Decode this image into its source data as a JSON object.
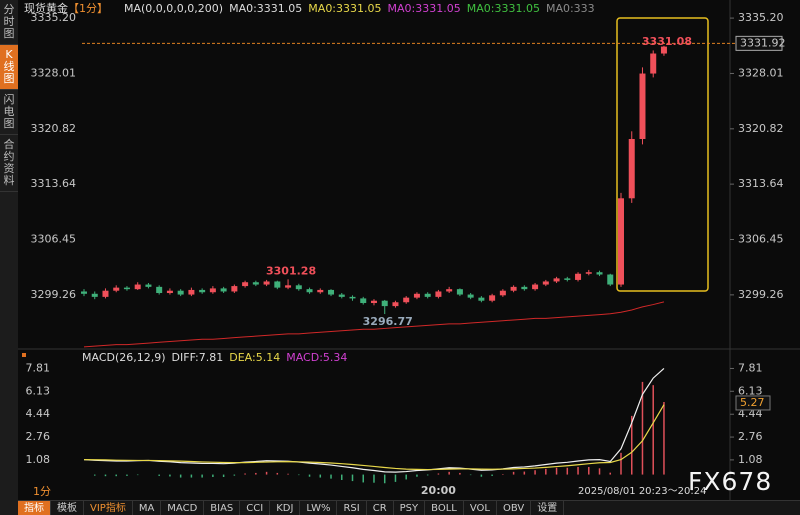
{
  "sidebar_tabs": [
    "分时图",
    "K线图",
    "闪电图",
    "合约资料"
  ],
  "toolbar": {
    "period": "1分",
    "items": [
      "指标",
      "模板",
      "VIP指标",
      "MA",
      "MACD",
      "BIAS",
      "CCI",
      "KDJ",
      "LW%",
      "RSI",
      "CR",
      "PSY",
      "BOLL",
      "VOL",
      "OBV",
      "设置"
    ]
  },
  "timestamp": "2025/08/01  20:23～20:24",
  "watermark": "FX678",
  "chart_data": [
    {
      "type": "candlestick",
      "title": "现货黄金",
      "period": "【1分】",
      "ma_label": "MA(0,0,0,0,0,200)",
      "ma_texts": [
        {
          "text": "MA0:3331.05",
          "color": "#dddddd"
        },
        {
          "text": "MA0:3331.05",
          "color": "#e8d84a"
        },
        {
          "text": "MA0:3331.05",
          "color": "#d040d0"
        },
        {
          "text": "MA0:3331.05",
          "color": "#40c040"
        },
        {
          "text": "MA0:333",
          "color": "#8a8a8a"
        }
      ],
      "categories": [
        null,
        null,
        null,
        null,
        null,
        null,
        null,
        null,
        null,
        null,
        null,
        null,
        null,
        null,
        null,
        null,
        null,
        null,
        null,
        null,
        null,
        null,
        null,
        null,
        null,
        null,
        null,
        null,
        null,
        null,
        null,
        null,
        null,
        "20:00",
        null,
        null,
        null,
        null,
        null,
        null,
        null,
        null,
        null,
        null,
        null,
        null,
        null,
        null,
        null,
        null,
        null,
        null,
        null,
        null,
        null
      ],
      "open": [
        3299.7,
        3299.4,
        3299.0,
        3299.8,
        3300.2,
        3300.0,
        3300.6,
        3300.3,
        3299.5,
        3299.8,
        3299.3,
        3299.9,
        3299.6,
        3300.1,
        3299.7,
        3300.4,
        3300.9,
        3300.6,
        3301.0,
        3300.2,
        3300.5,
        3300.0,
        3299.6,
        3299.9,
        3299.3,
        3299.0,
        3298.8,
        3298.2,
        3298.5,
        3297.8,
        3298.3,
        3298.9,
        3299.4,
        3299.0,
        3299.7,
        3300.0,
        3299.3,
        3298.9,
        3298.5,
        3299.2,
        3299.8,
        3300.3,
        3300.0,
        3300.6,
        3301.0,
        3301.4,
        3301.2,
        3302.0,
        3302.2,
        3301.9,
        3300.6,
        3311.8,
        3319.5,
        3328.0,
        3330.6
      ],
      "high": [
        3300.0,
        3299.7,
        3300.1,
        3300.5,
        3300.4,
        3300.9,
        3300.8,
        3300.5,
        3300.1,
        3300.0,
        3300.2,
        3300.1,
        3300.4,
        3300.3,
        3300.6,
        3301.1,
        3301.1,
        3301.2,
        3301.1,
        3301.28,
        3300.7,
        3300.2,
        3300.1,
        3300.0,
        3299.5,
        3299.2,
        3299.0,
        3298.7,
        3298.6,
        3298.5,
        3299.1,
        3299.6,
        3299.6,
        3299.9,
        3300.3,
        3300.1,
        3299.5,
        3299.1,
        3299.4,
        3300.0,
        3300.5,
        3300.5,
        3300.8,
        3301.2,
        3301.6,
        3301.6,
        3302.2,
        3302.5,
        3302.4,
        3302.0,
        3312.5,
        3320.5,
        3328.8,
        3331.0,
        3331.6
      ],
      "low": [
        3299.1,
        3298.7,
        3298.8,
        3299.6,
        3299.8,
        3299.9,
        3300.1,
        3299.3,
        3299.3,
        3299.1,
        3299.1,
        3299.4,
        3299.4,
        3299.5,
        3299.5,
        3300.2,
        3300.4,
        3300.4,
        3300.0,
        3300.0,
        3299.8,
        3299.4,
        3299.4,
        3299.1,
        3298.8,
        3298.5,
        3298.0,
        3297.9,
        3296.77,
        3297.6,
        3298.1,
        3298.7,
        3298.8,
        3298.8,
        3299.5,
        3299.1,
        3298.7,
        3298.3,
        3298.3,
        3299.0,
        3299.6,
        3299.8,
        3299.8,
        3300.4,
        3300.8,
        3301.0,
        3301.0,
        3301.8,
        3301.7,
        3300.4,
        3300.3,
        3311.2,
        3318.8,
        3327.5,
        3330.3
      ],
      "close": [
        3299.4,
        3299.0,
        3299.8,
        3300.2,
        3300.0,
        3300.6,
        3300.3,
        3299.5,
        3299.8,
        3299.3,
        3299.9,
        3299.6,
        3300.1,
        3299.7,
        3300.4,
        3300.9,
        3300.6,
        3301.0,
        3300.2,
        3300.5,
        3300.0,
        3299.6,
        3299.9,
        3299.3,
        3299.0,
        3298.8,
        3298.2,
        3298.5,
        3297.8,
        3298.3,
        3298.9,
        3299.4,
        3299.0,
        3299.7,
        3300.0,
        3299.3,
        3298.9,
        3298.5,
        3299.2,
        3299.8,
        3300.3,
        3300.0,
        3300.6,
        3301.0,
        3301.4,
        3301.2,
        3302.0,
        3302.2,
        3301.9,
        3300.6,
        3311.8,
        3319.5,
        3328.0,
        3330.6,
        3331.5
      ],
      "up_color": "#f0505a",
      "down_color": "#3fb07a",
      "ma_color": "#d02828",
      "ma_values": [
        3292.5,
        3292.6,
        3292.7,
        3292.8,
        3292.8,
        3292.9,
        3293.0,
        3293.1,
        3293.2,
        3293.3,
        3293.4,
        3293.5,
        3293.5,
        3293.6,
        3293.7,
        3293.8,
        3293.9,
        3294.0,
        3294.1,
        3294.2,
        3294.2,
        3294.3,
        3294.4,
        3294.5,
        3294.6,
        3294.7,
        3294.8,
        3294.8,
        3294.9,
        3295.0,
        3295.1,
        3295.2,
        3295.3,
        3295.4,
        3295.5,
        3295.5,
        3295.6,
        3295.7,
        3295.8,
        3295.9,
        3296.0,
        3296.1,
        3296.2,
        3296.2,
        3296.3,
        3296.4,
        3296.5,
        3296.6,
        3296.7,
        3296.8,
        3297.0,
        3297.3,
        3297.7,
        3298.0,
        3298.35
      ],
      "ylim": [
        3292.1,
        3336.9
      ],
      "yticks": [
        {
          "value": 3335.2,
          "label": "3335.20"
        },
        3328.01,
        3320.82,
        3313.64,
        3306.45,
        3299.26
      ],
      "last_price": 3331.92,
      "annotations": [
        3331.08,
        3301.28,
        3296.77
      ]
    },
    {
      "type": "macd",
      "title": "MACD(26,12,9)",
      "header": [
        {
          "text": "DIFF:7.81",
          "color": "#dddddd"
        },
        {
          "text": "DEA:5.14",
          "color": "#e8d84a"
        },
        {
          "text": "MACD:5.34",
          "color": "#d040d0"
        }
      ],
      "series": [
        {
          "color": "#f0f0f0",
          "values": [
            1.1,
            1.05,
            1.02,
            1.0,
            1.0,
            1.02,
            1.04,
            0.98,
            0.94,
            0.88,
            0.85,
            0.82,
            0.82,
            0.8,
            0.84,
            0.92,
            0.96,
            1.02,
            1.0,
            0.98,
            0.92,
            0.84,
            0.78,
            0.7,
            0.6,
            0.5,
            0.38,
            0.3,
            0.2,
            0.18,
            0.22,
            0.3,
            0.34,
            0.42,
            0.5,
            0.48,
            0.4,
            0.32,
            0.34,
            0.42,
            0.52,
            0.56,
            0.64,
            0.74,
            0.84,
            0.9,
            1.0,
            1.08,
            1.1,
            0.96,
            1.9,
            3.8,
            5.9,
            7.1,
            7.81
          ]
        },
        {
          "color": "#e8d84a",
          "values": [
            1.1,
            1.09,
            1.08,
            1.06,
            1.05,
            1.04,
            1.04,
            1.03,
            1.01,
            0.99,
            0.96,
            0.93,
            0.91,
            0.89,
            0.88,
            0.88,
            0.9,
            0.92,
            0.94,
            0.95,
            0.94,
            0.92,
            0.89,
            0.85,
            0.8,
            0.74,
            0.67,
            0.6,
            0.52,
            0.45,
            0.4,
            0.38,
            0.37,
            0.38,
            0.4,
            0.42,
            0.42,
            0.4,
            0.39,
            0.4,
            0.42,
            0.45,
            0.48,
            0.53,
            0.59,
            0.65,
            0.72,
            0.8,
            0.87,
            0.89,
            1.1,
            1.64,
            2.49,
            3.81,
            5.14
          ]
        }
      ],
      "histogram": [
        0.0,
        -0.08,
        -0.12,
        -0.12,
        -0.1,
        -0.04,
        0.0,
        -0.1,
        -0.14,
        -0.22,
        -0.22,
        -0.22,
        -0.18,
        -0.18,
        -0.08,
        0.08,
        0.12,
        0.2,
        0.12,
        0.06,
        -0.04,
        -0.16,
        -0.22,
        -0.3,
        -0.4,
        -0.48,
        -0.58,
        -0.6,
        -0.64,
        -0.54,
        -0.36,
        -0.16,
        -0.06,
        0.08,
        0.2,
        0.12,
        -0.04,
        -0.16,
        -0.1,
        0.04,
        0.2,
        0.22,
        0.32,
        0.42,
        0.5,
        0.5,
        0.56,
        0.56,
        0.46,
        0.14,
        1.6,
        4.32,
        6.82,
        6.58,
        5.34
      ],
      "pos_color": "#e0505a",
      "neg_color": "#3fb07a",
      "ylim": [
        -0.4,
        8.8
      ],
      "yticks": [
        7.81,
        6.13,
        4.44,
        2.76,
        1.08
      ],
      "current_label": 5.27
    }
  ]
}
